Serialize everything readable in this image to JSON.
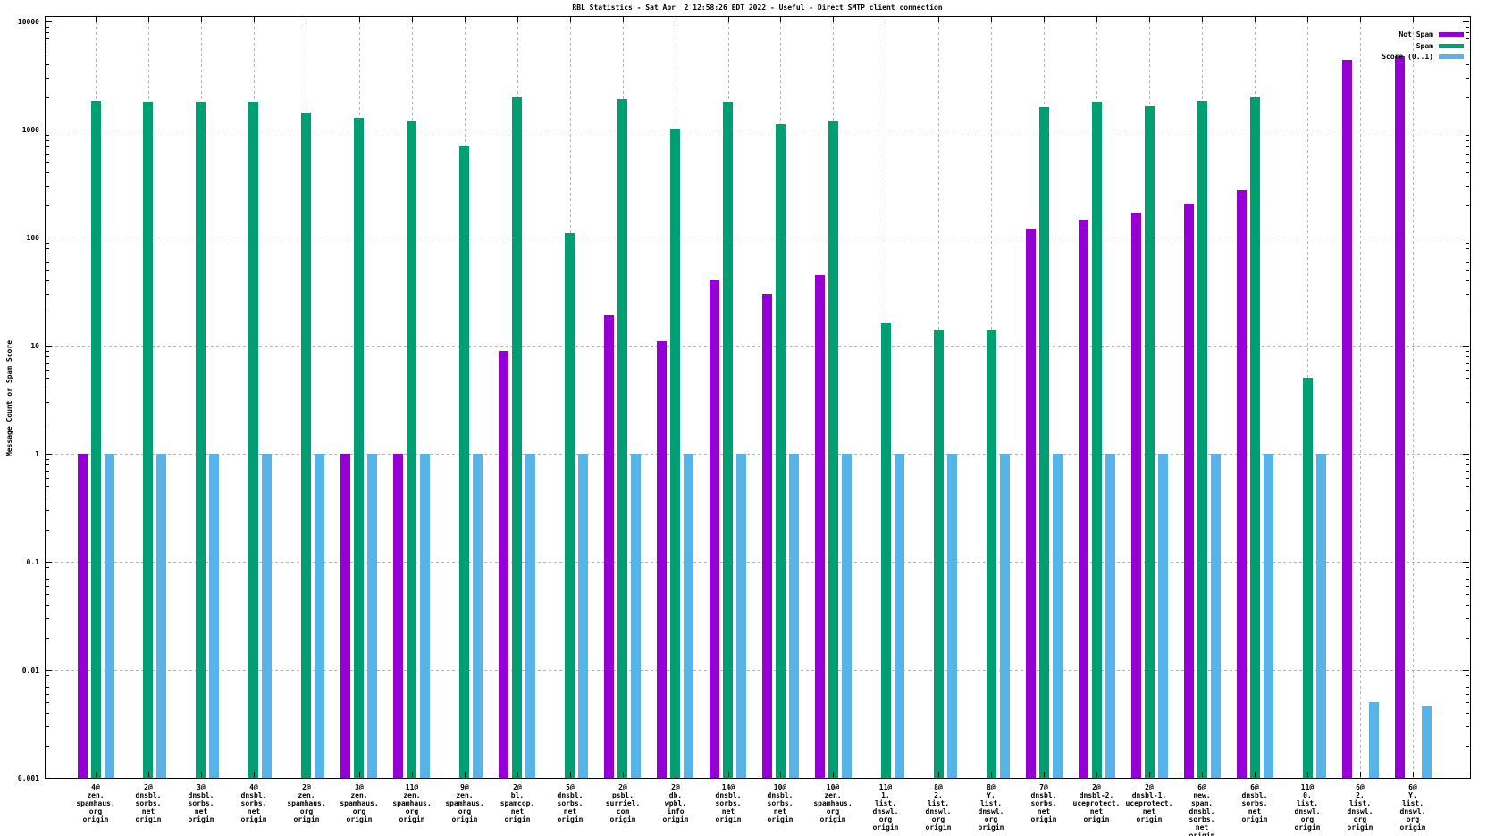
{
  "chart_data": {
    "type": "bar",
    "title": "RBL Statistics - Sat Apr  2 12:58:26 EDT 2022 - Useful - Direct SMTP client connection",
    "ylabel": "Message Count or Spam Score",
    "xlabel": "",
    "log_scale_y": true,
    "ylim": [
      0.001,
      10000
    ],
    "grid": true,
    "legend_position": "top-right-inside",
    "y_ticks": [
      {
        "value": 10000,
        "label": "10000"
      },
      {
        "value": 1000,
        "label": "1000"
      },
      {
        "value": 100,
        "label": "100"
      },
      {
        "value": 10,
        "label": "10"
      },
      {
        "value": 1,
        "label": "1"
      },
      {
        "value": 0.1,
        "label": "0.1"
      },
      {
        "value": 0.01,
        "label": "0.01"
      },
      {
        "value": 0.001,
        "label": "0.001"
      }
    ],
    "categories": [
      [
        "4@",
        "zen.",
        "spamhaus.",
        "org",
        "origin"
      ],
      [
        "2@",
        "dnsbl.",
        "sorbs.",
        "net",
        "origin"
      ],
      [
        "3@",
        "dnsbl.",
        "sorbs.",
        "net",
        "origin"
      ],
      [
        "4@",
        "dnsbl.",
        "sorbs.",
        "net",
        "origin"
      ],
      [
        "2@",
        "zen.",
        "spamhaus.",
        "org",
        "origin"
      ],
      [
        "3@",
        "zen.",
        "spamhaus.",
        "org",
        "origin"
      ],
      [
        "11@",
        "zen.",
        "spamhaus.",
        "org",
        "origin"
      ],
      [
        "9@",
        "zen.",
        "spamhaus.",
        "org",
        "origin"
      ],
      [
        "2@",
        "bl.",
        "spamcop.",
        "net",
        "origin"
      ],
      [
        "5@",
        "dnsbl.",
        "sorbs.",
        "net",
        "origin"
      ],
      [
        "2@",
        "psbl.",
        "surriel.",
        "com",
        "origin"
      ],
      [
        "2@",
        "db.",
        "wpbl.",
        "info",
        "origin"
      ],
      [
        "14@",
        "dnsbl.",
        "sorbs.",
        "net",
        "origin"
      ],
      [
        "10@",
        "dnsbl.",
        "sorbs.",
        "net",
        "origin"
      ],
      [
        "10@",
        "zen.",
        "spamhaus.",
        "org",
        "origin"
      ],
      [
        "11@",
        "1.",
        "list.",
        "dnswl.",
        "org",
        "origin"
      ],
      [
        "8@",
        "2.",
        "list.",
        "dnswl.",
        "org",
        "origin"
      ],
      [
        "8@",
        "Y.",
        "list.",
        "dnswl.",
        "org",
        "origin"
      ],
      [
        "7@",
        "dnsbl.",
        "sorbs.",
        "net",
        "origin"
      ],
      [
        "2@",
        "dnsbl-2.",
        "uceprotect.",
        "net",
        "origin"
      ],
      [
        "2@",
        "dnsbl-1.",
        "uceprotect.",
        "net",
        "origin"
      ],
      [
        "6@",
        "new.",
        "spam.",
        "dnsbl.",
        "sorbs.",
        "net",
        "origin"
      ],
      [
        "6@",
        "dnsbl.",
        "sorbs.",
        "net",
        "origin"
      ],
      [
        "11@",
        "0.",
        "list.",
        "dnswl.",
        "org",
        "origin"
      ],
      [
        "6@",
        "2.",
        "list.",
        "dnswl.",
        "org",
        "origin"
      ],
      [
        "6@",
        "Y.",
        "list.",
        "dnswl.",
        "org",
        "origin"
      ]
    ],
    "series": [
      {
        "name": "Not Spam",
        "color": "#9400D3",
        "values": [
          1,
          null,
          null,
          null,
          null,
          1,
          1,
          null,
          9,
          null,
          19,
          11,
          40,
          30,
          45,
          null,
          null,
          null,
          120,
          145,
          170,
          205,
          275,
          null,
          4400,
          4760
        ]
      },
      {
        "name": "Spam",
        "color": "#009E73",
        "values": [
          1850,
          1810,
          1810,
          1810,
          1430,
          1290,
          1180,
          700,
          2000,
          110,
          1900,
          1010,
          1800,
          1120,
          1180,
          16,
          14,
          14,
          1620,
          1800,
          1640,
          1850,
          2000,
          5,
          null,
          null
        ]
      },
      {
        "name": "Score (0..1)",
        "color": "#56B4E9",
        "values": [
          1,
          1,
          1,
          1,
          1,
          1,
          1,
          1,
          1,
          1,
          1,
          1,
          1,
          1,
          1,
          1,
          1,
          1,
          1,
          1,
          1,
          1,
          1,
          1,
          0.005,
          0.0046
        ]
      }
    ],
    "colors": {
      "grid": "#b4b4b4",
      "axis": "#000000",
      "background": "#ffffff"
    }
  }
}
